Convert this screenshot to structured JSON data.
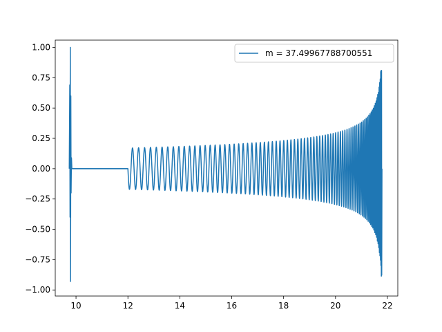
{
  "chart_data": {
    "type": "line",
    "title": "",
    "xlabel": "",
    "ylabel": "",
    "xlim": [
      9.2,
      22.4
    ],
    "ylim": [
      -1.05,
      1.06
    ],
    "x_ticks": [
      10,
      12,
      14,
      16,
      18,
      20,
      22
    ],
    "x_tick_labels": [
      "10",
      "12",
      "14",
      "16",
      "18",
      "20",
      "22"
    ],
    "y_ticks": [
      1.0,
      0.75,
      0.5,
      0.25,
      0.0,
      -0.25,
      -0.5,
      -0.75,
      -1.0
    ],
    "y_tick_labels": [
      "1.00",
      "0.75",
      "0.50",
      "0.25",
      "0.00",
      "−0.25",
      "−0.50",
      "−0.75",
      "−1.00"
    ],
    "grid": false,
    "legend_position": "upper-right",
    "series": [
      {
        "name": "m = 37.49967788700551",
        "color": "#1f77b4",
        "description_points": {
          "initial_burst": {
            "x": [
              9.74,
              9.84
            ],
            "peak_max": 1.0,
            "peak_min": -0.93
          },
          "flat_segment": {
            "x": [
              9.84,
              12.0
            ],
            "y": 0.0
          },
          "chirp": {
            "x_start": 12.0,
            "x_end": 21.78,
            "amplitude_start": 0.17,
            "amplitude_end_max": 0.81,
            "amplitude_end_min": -0.91,
            "cycles": 120
          }
        }
      }
    ]
  }
}
